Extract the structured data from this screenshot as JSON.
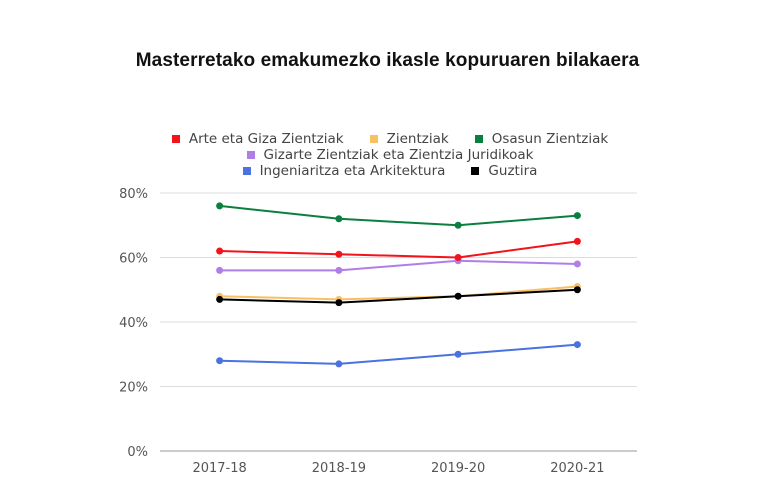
{
  "chart_data": {
    "type": "line",
    "title": "Masterretako emakumezko ikasle kopuruaren bilakaera",
    "xlabel": "",
    "ylabel": "",
    "categories": [
      "2017-18",
      "2018-19",
      "2019-20",
      "2020-21"
    ],
    "ylim": [
      0,
      80
    ],
    "yticks": [
      "0%",
      "20%",
      "40%",
      "60%",
      "80%"
    ],
    "ytick_values": [
      0,
      20,
      40,
      60,
      80
    ],
    "grid": true,
    "legend_position": "top",
    "series": [
      {
        "name": "Arte eta Giza Zientziak",
        "color": "#f2141b",
        "values": [
          62,
          61,
          60,
          65
        ]
      },
      {
        "name": "Zientziak",
        "color": "#f9bf63",
        "values": [
          48,
          47,
          48,
          51
        ]
      },
      {
        "name": "Osasun Zientziak",
        "color": "#0a7f3f",
        "values": [
          76,
          72,
          70,
          73
        ]
      },
      {
        "name": "Gizarte Zientziak eta Zientzia Juridikoak",
        "color": "#b17ee8",
        "values": [
          56,
          56,
          59,
          58
        ]
      },
      {
        "name": "Ingeniaritza eta Arkitektura",
        "color": "#4a72e0",
        "values": [
          28,
          27,
          30,
          33
        ]
      },
      {
        "name": "Guztira",
        "color": "#000000",
        "values": [
          47,
          46,
          48,
          50
        ]
      }
    ],
    "legend_rows": [
      [
        0,
        1,
        2
      ],
      [
        3
      ],
      [
        4,
        5
      ]
    ]
  }
}
